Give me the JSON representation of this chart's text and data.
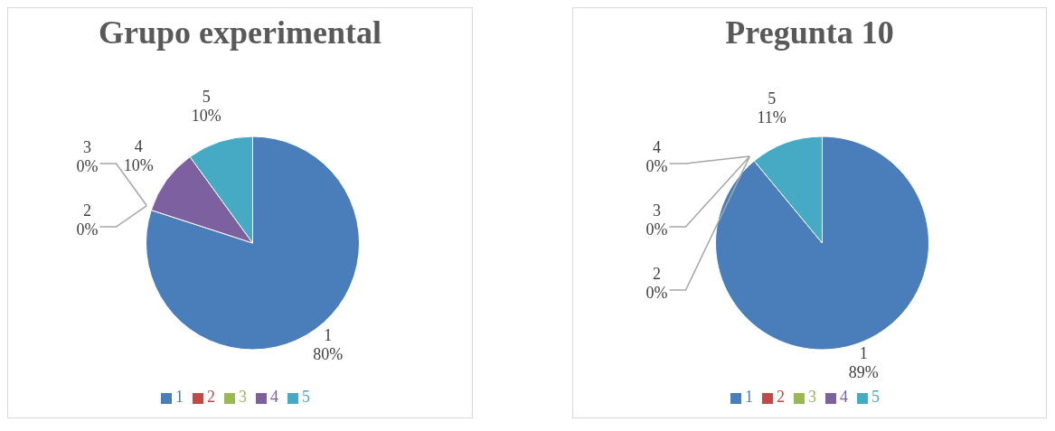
{
  "chart_data": [
    {
      "type": "pie",
      "title": "Grupo experimental",
      "categories": [
        "1",
        "2",
        "3",
        "4",
        "5"
      ],
      "values": [
        80,
        0,
        0,
        10,
        10
      ],
      "value_labels": [
        "80%",
        "0%",
        "0%",
        "10%",
        "10%"
      ],
      "colors": [
        "#4a7ebb",
        "#be4b48",
        "#98b954",
        "#7d60a0",
        "#46aac5"
      ],
      "legend": "bottom"
    },
    {
      "type": "pie",
      "title": "Pregunta 10",
      "categories": [
        "1",
        "2",
        "3",
        "4",
        "5"
      ],
      "values": [
        89,
        0,
        0,
        0,
        11
      ],
      "value_labels": [
        "89%",
        "0%",
        "0%",
        "0%",
        "11%"
      ],
      "colors": [
        "#4a7ebb",
        "#be4b48",
        "#98b954",
        "#7d60a0",
        "#46aac5"
      ],
      "legend": "bottom"
    }
  ]
}
